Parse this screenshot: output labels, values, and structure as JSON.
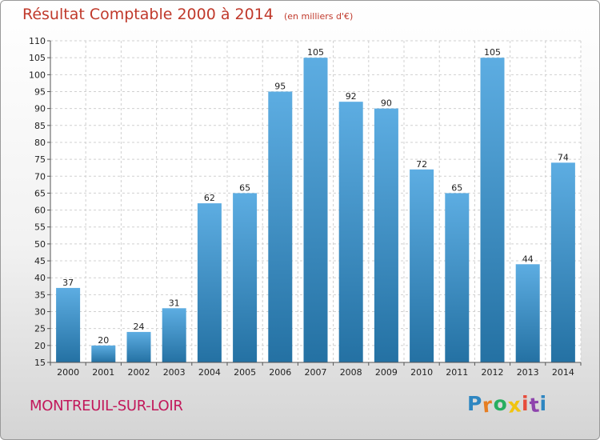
{
  "header": {
    "title": "Résultat Comptable 2000 à 2014",
    "subtitle": "(en milliers d'€)"
  },
  "footer": {
    "commune": "MONTREUIL-SUR-LOIR",
    "logo_letters": [
      "P",
      "r",
      "o",
      "x",
      "i",
      "t",
      "i"
    ],
    "logo_colors": [
      "#2e86c1",
      "#e67e22",
      "#27ae60",
      "#f1c40f",
      "#e74c3c",
      "#8e44ad",
      "#2e86c1"
    ]
  },
  "chart_data": {
    "type": "bar",
    "categories": [
      "2000",
      "2001",
      "2002",
      "2003",
      "2004",
      "2005",
      "2006",
      "2007",
      "2008",
      "2009",
      "2010",
      "2011",
      "2012",
      "2013",
      "2014"
    ],
    "values": [
      37,
      20,
      24,
      31,
      62,
      65,
      95,
      105,
      92,
      90,
      72,
      65,
      105,
      44,
      74
    ],
    "xlabel": "",
    "ylabel": "",
    "ylim": [
      15,
      110
    ],
    "yticks": [
      15,
      20,
      25,
      30,
      35,
      40,
      45,
      50,
      55,
      60,
      65,
      70,
      75,
      80,
      85,
      90,
      95,
      100,
      105,
      110
    ],
    "grid": true,
    "bar_color_top": "#5dade2",
    "bar_color_bottom": "#2471a3"
  }
}
